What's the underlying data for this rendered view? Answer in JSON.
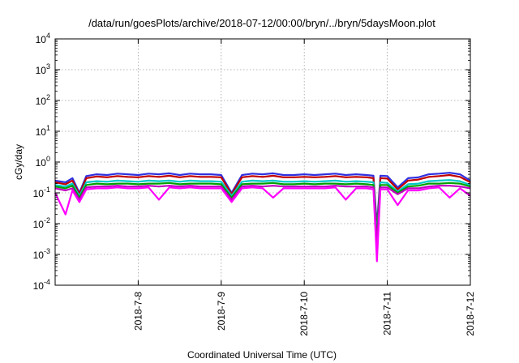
{
  "chart_data": {
    "type": "line",
    "title": "/data/run/goesPlots/archive/2018-07-12/00:00/bryn/../bryn/5daysMoon.plot",
    "xlabel": "Coordinated Universal Time (UTC)",
    "ylabel": "cGy/day",
    "y_scale": "log",
    "ylim": [
      0.0001,
      10000
    ],
    "x_range": [
      "2018-07-07T00:00",
      "2018-07-12T00:00"
    ],
    "x_ticks": [
      {
        "label": "2018-7-8",
        "x": "2018-07-08T00:00"
      },
      {
        "label": "2018-7-9",
        "x": "2018-07-09T00:00"
      },
      {
        "label": "2018-7-10",
        "x": "2018-07-10T00:00"
      },
      {
        "label": "2018-7-11",
        "x": "2018-07-11T00:00"
      },
      {
        "label": "2018-7-12",
        "x": "2018-07-12T00:00"
      }
    ],
    "y_ticks": [
      {
        "base": "10",
        "exp": "-4",
        "value": 0.0001
      },
      {
        "base": "10",
        "exp": "-3",
        "value": 0.001
      },
      {
        "base": "10",
        "exp": "-2",
        "value": 0.01
      },
      {
        "base": "10",
        "exp": "-1",
        "value": 0.1
      },
      {
        "base": "10",
        "exp": "0",
        "value": 1
      },
      {
        "base": "10",
        "exp": "1",
        "value": 10
      },
      {
        "base": "10",
        "exp": "2",
        "value": 100
      },
      {
        "base": "10",
        "exp": "3",
        "value": 1000
      },
      {
        "base": "10",
        "exp": "4",
        "value": 10000
      }
    ],
    "grid": true,
    "x": [
      "2018-07-07T00:00",
      "2018-07-07T03:00",
      "2018-07-07T05:00",
      "2018-07-07T07:00",
      "2018-07-07T09:00",
      "2018-07-07T12:00",
      "2018-07-07T15:00",
      "2018-07-07T18:00",
      "2018-07-07T21:00",
      "2018-07-08T00:00",
      "2018-07-08T03:00",
      "2018-07-08T06:00",
      "2018-07-08T09:00",
      "2018-07-08T12:00",
      "2018-07-08T15:00",
      "2018-07-08T18:00",
      "2018-07-08T21:00",
      "2018-07-09T00:00",
      "2018-07-09T03:00",
      "2018-07-09T06:00",
      "2018-07-09T09:00",
      "2018-07-09T12:00",
      "2018-07-09T15:00",
      "2018-07-09T18:00",
      "2018-07-09T21:00",
      "2018-07-10T00:00",
      "2018-07-10T03:00",
      "2018-07-10T06:00",
      "2018-07-10T09:00",
      "2018-07-10T12:00",
      "2018-07-10T15:00",
      "2018-07-10T18:00",
      "2018-07-10T20:00",
      "2018-07-10T21:00",
      "2018-07-10T22:00",
      "2018-07-11T00:00",
      "2018-07-11T03:00",
      "2018-07-11T06:00",
      "2018-07-11T09:00",
      "2018-07-11T12:00",
      "2018-07-11T15:00",
      "2018-07-11T18:00",
      "2018-07-11T21:00",
      "2018-07-12T00:00"
    ],
    "series": [
      {
        "color": "#3030e0",
        "values": [
          0.25,
          0.22,
          0.3,
          0.1,
          0.35,
          0.4,
          0.38,
          0.42,
          0.4,
          0.38,
          0.42,
          0.4,
          0.43,
          0.38,
          0.42,
          0.4,
          0.4,
          0.38,
          0.1,
          0.38,
          0.42,
          0.4,
          0.43,
          0.38,
          0.38,
          0.4,
          0.38,
          0.4,
          0.42,
          0.38,
          0.4,
          0.38,
          0.36,
          0.008,
          0.36,
          0.35,
          0.15,
          0.3,
          0.32,
          0.4,
          0.42,
          0.45,
          0.4,
          0.25
        ]
      },
      {
        "color": "#c00000",
        "values": [
          0.22,
          0.19,
          0.25,
          0.09,
          0.3,
          0.34,
          0.32,
          0.35,
          0.33,
          0.32,
          0.35,
          0.33,
          0.36,
          0.32,
          0.35,
          0.33,
          0.33,
          0.32,
          0.09,
          0.32,
          0.35,
          0.33,
          0.36,
          0.32,
          0.32,
          0.33,
          0.32,
          0.33,
          0.35,
          0.32,
          0.33,
          0.32,
          0.3,
          0.005,
          0.3,
          0.29,
          0.13,
          0.25,
          0.27,
          0.33,
          0.35,
          0.38,
          0.33,
          0.22
        ]
      },
      {
        "color": "#00c8c8",
        "values": [
          0.18,
          0.16,
          0.2,
          0.08,
          0.22,
          0.24,
          0.23,
          0.25,
          0.24,
          0.23,
          0.25,
          0.24,
          0.25,
          0.23,
          0.25,
          0.24,
          0.24,
          0.23,
          0.08,
          0.23,
          0.25,
          0.24,
          0.25,
          0.23,
          0.23,
          0.24,
          0.23,
          0.24,
          0.25,
          0.23,
          0.24,
          0.23,
          0.22,
          0.004,
          0.22,
          0.21,
          0.11,
          0.19,
          0.2,
          0.24,
          0.25,
          0.26,
          0.24,
          0.18
        ]
      },
      {
        "color": "#00a000",
        "values": [
          0.16,
          0.14,
          0.17,
          0.07,
          0.18,
          0.2,
          0.19,
          0.2,
          0.2,
          0.19,
          0.2,
          0.2,
          0.21,
          0.19,
          0.2,
          0.2,
          0.2,
          0.19,
          0.07,
          0.19,
          0.2,
          0.2,
          0.21,
          0.19,
          0.19,
          0.2,
          0.19,
          0.2,
          0.2,
          0.19,
          0.2,
          0.19,
          0.18,
          0.003,
          0.18,
          0.18,
          0.1,
          0.16,
          0.17,
          0.2,
          0.2,
          0.21,
          0.2,
          0.16
        ]
      },
      {
        "color": "#c000c0",
        "values": [
          0.14,
          0.12,
          0.14,
          0.06,
          0.15,
          0.16,
          0.16,
          0.17,
          0.16,
          0.16,
          0.17,
          0.16,
          0.17,
          0.16,
          0.17,
          0.16,
          0.16,
          0.16,
          0.06,
          0.16,
          0.17,
          0.16,
          0.17,
          0.16,
          0.16,
          0.16,
          0.16,
          0.16,
          0.17,
          0.16,
          0.16,
          0.16,
          0.15,
          0.002,
          0.15,
          0.15,
          0.09,
          0.14,
          0.14,
          0.16,
          0.17,
          0.17,
          0.16,
          0.14
        ]
      },
      {
        "color": "#ff00ff",
        "values": [
          0.1,
          0.02,
          0.12,
          0.05,
          0.13,
          0.14,
          0.14,
          0.15,
          0.14,
          0.14,
          0.15,
          0.06,
          0.15,
          0.14,
          0.15,
          0.14,
          0.14,
          0.14,
          0.05,
          0.14,
          0.15,
          0.14,
          0.07,
          0.14,
          0.14,
          0.14,
          0.14,
          0.14,
          0.15,
          0.06,
          0.14,
          0.14,
          0.13,
          0.0006,
          0.13,
          0.13,
          0.04,
          0.12,
          0.12,
          0.14,
          0.15,
          0.07,
          0.14,
          0.08
        ]
      }
    ]
  }
}
